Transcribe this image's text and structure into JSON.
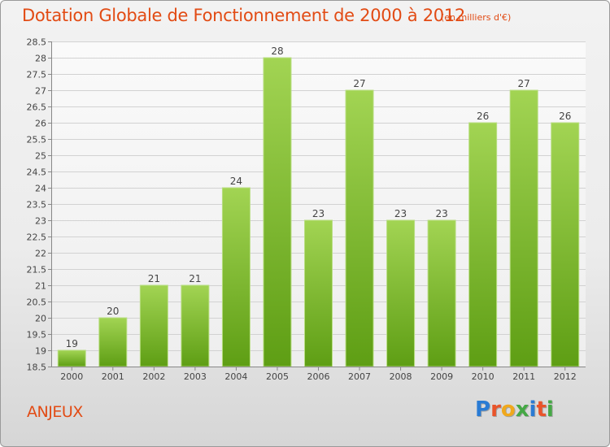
{
  "header": {
    "title": "Dotation Globale de Fonctionnement de 2000 à 2012",
    "subtitle": "(en milliers d'€)"
  },
  "commune": "ANJEUX",
  "logo": {
    "text": "Proxiti",
    "letter_colors": [
      "#2a7bd4",
      "#e9542a",
      "#f0a81c",
      "#45a845",
      "#2a7bd4",
      "#e9542a",
      "#45a845"
    ]
  },
  "chart_data": {
    "type": "bar",
    "title": "Dotation Globale de Fonctionnement de 2000 à 2012",
    "subtitle": "(en milliers d'€)",
    "xlabel": "",
    "ylabel": "",
    "categories": [
      "2000",
      "2001",
      "2002",
      "2003",
      "2004",
      "2005",
      "2006",
      "2007",
      "2008",
      "2009",
      "2010",
      "2011",
      "2012"
    ],
    "values": [
      19,
      20,
      21,
      21,
      24,
      28,
      23,
      27,
      23,
      23,
      26,
      27,
      26
    ],
    "data_labels": [
      "19",
      "20",
      "21",
      "21",
      "24",
      "28",
      "23",
      "27",
      "23",
      "23",
      "26",
      "27",
      "26"
    ],
    "ylim": [
      18.5,
      28.5
    ],
    "yticks": [
      "18.5",
      "19",
      "19.5",
      "20",
      "20.5",
      "21",
      "21.5",
      "22",
      "22.5",
      "23",
      "23.5",
      "24",
      "24.5",
      "25",
      "25.5",
      "26",
      "26.5",
      "27",
      "27.5",
      "28",
      "28.5"
    ],
    "grid": true,
    "bar_color": "#7cbf2e"
  }
}
